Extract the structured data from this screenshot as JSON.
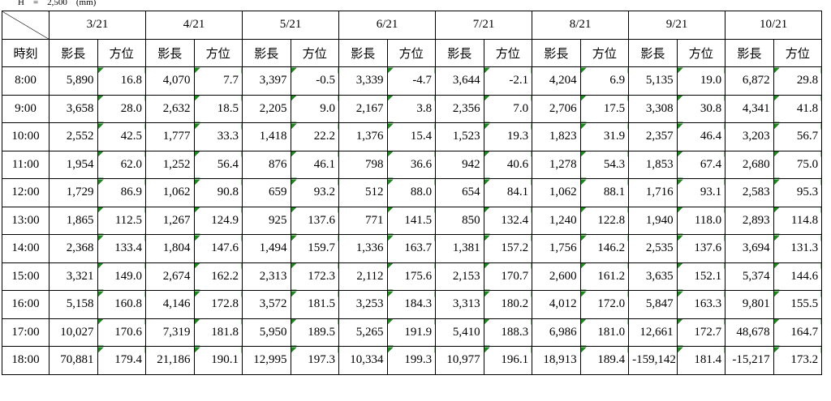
{
  "caption": "H　=　2,500　(mm)",
  "table": {
    "dates": [
      "3/21",
      "4/21",
      "5/21",
      "6/21",
      "7/21",
      "8/21",
      "9/21",
      "10/21"
    ],
    "header": [
      "時刻",
      "影長",
      "方位",
      "影長",
      "方位",
      "影長",
      "方位",
      "影長",
      "方位",
      "影長",
      "方位",
      "影長",
      "方位",
      "影長",
      "方位",
      "影長",
      "方位"
    ],
    "rows": [
      [
        "8:00",
        "5,890",
        "16.8",
        "4,070",
        "7.7",
        "3,397",
        "-0.5",
        "3,339",
        "-4.7",
        "3,644",
        "-2.1",
        "4,204",
        "6.9",
        "5,135",
        "19.0",
        "6,872",
        "29.8"
      ],
      [
        "9:00",
        "3,658",
        "28.0",
        "2,632",
        "18.5",
        "2,205",
        "9.0",
        "2,167",
        "3.8",
        "2,356",
        "7.0",
        "2,706",
        "17.5",
        "3,308",
        "30.8",
        "4,341",
        "41.8"
      ],
      [
        "10:00",
        "2,552",
        "42.5",
        "1,777",
        "33.3",
        "1,418",
        "22.2",
        "1,376",
        "15.4",
        "1,523",
        "19.3",
        "1,823",
        "31.9",
        "2,357",
        "46.4",
        "3,203",
        "56.7"
      ],
      [
        "11:00",
        "1,954",
        "62.0",
        "1,252",
        "56.4",
        "876",
        "46.1",
        "798",
        "36.6",
        "942",
        "40.6",
        "1,278",
        "54.3",
        "1,853",
        "67.4",
        "2,680",
        "75.0"
      ],
      [
        "12:00",
        "1,729",
        "86.9",
        "1,062",
        "90.8",
        "659",
        "93.2",
        "512",
        "88.0",
        "654",
        "84.1",
        "1,062",
        "88.1",
        "1,716",
        "93.1",
        "2,583",
        "95.3"
      ],
      [
        "13:00",
        "1,865",
        "112.5",
        "1,267",
        "124.9",
        "925",
        "137.6",
        "771",
        "141.5",
        "850",
        "132.4",
        "1,240",
        "122.8",
        "1,940",
        "118.0",
        "2,893",
        "114.8"
      ],
      [
        "14:00",
        "2,368",
        "133.4",
        "1,804",
        "147.6",
        "1,494",
        "159.7",
        "1,336",
        "163.7",
        "1,381",
        "157.2",
        "1,756",
        "146.2",
        "2,535",
        "137.6",
        "3,694",
        "131.3"
      ],
      [
        "15:00",
        "3,321",
        "149.0",
        "2,674",
        "162.2",
        "2,313",
        "172.3",
        "2,112",
        "175.6",
        "2,153",
        "170.7",
        "2,600",
        "161.2",
        "3,635",
        "152.1",
        "5,374",
        "144.6"
      ],
      [
        "16:00",
        "5,158",
        "160.8",
        "4,146",
        "172.8",
        "3,572",
        "181.5",
        "3,253",
        "184.3",
        "3,313",
        "180.2",
        "4,012",
        "172.0",
        "5,847",
        "163.3",
        "9,801",
        "155.5"
      ],
      [
        "17:00",
        "10,027",
        "170.6",
        "7,319",
        "181.8",
        "5,950",
        "189.5",
        "5,265",
        "191.9",
        "5,410",
        "188.3",
        "6,986",
        "181.0",
        "12,661",
        "172.7",
        "48,678",
        "164.7"
      ],
      [
        "18:00",
        "70,881",
        "179.4",
        "21,186",
        "190.1",
        "12,995",
        "197.3",
        "10,334",
        "199.3",
        "10,977",
        "196.1",
        "18,913",
        "189.4",
        "-159,142",
        "181.4",
        "-15,217",
        "173.2"
      ]
    ]
  }
}
